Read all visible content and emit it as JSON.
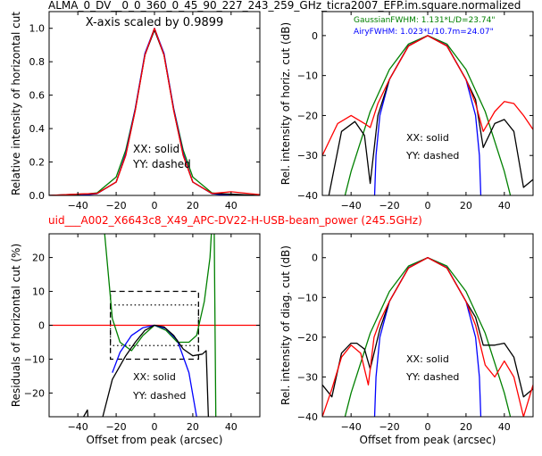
{
  "figure": {
    "title": "ALMA_0_DV__0_0_360_0_45_90_227_243_259_GHz_ticra2007_EFP.im.square.normalized",
    "subtitle": "uid___A002_X6643c8_X49_APC-DV22-H-USB-beam_power (245.5GHz)",
    "title_color": "#000000",
    "subtitle_color": "#ff0000"
  },
  "chart_data": [
    {
      "type": "line",
      "ylabel": "Relative intensity of horizontal cut",
      "xlabel": "",
      "xlim": [
        -55,
        55
      ],
      "ylim": [
        0.0,
        1.1
      ],
      "xticks": [
        -40,
        -20,
        0,
        20,
        40
      ],
      "yticks": [
        0.0,
        0.2,
        0.4,
        0.6,
        0.8,
        1.0
      ],
      "ytick_labels": [
        "0.0",
        "0.2",
        "0.4",
        "0.6",
        "0.8",
        "1.0"
      ],
      "annotations": [
        {
          "text": "X-axis scaled by 0.9899",
          "color": "#000000"
        },
        {
          "text": "XX: solid",
          "color": "#000000"
        },
        {
          "text": "YY: dashed",
          "color": "#000000"
        }
      ],
      "series": [
        {
          "color": "#008000",
          "x": [
            -55,
            -40,
            -30,
            -20,
            -15,
            -10,
            -5,
            0,
            5,
            10,
            15,
            20,
            30,
            40,
            55
          ],
          "y": [
            0,
            0.002,
            0.015,
            0.11,
            0.27,
            0.52,
            0.84,
            1.0,
            0.84,
            0.52,
            0.27,
            0.11,
            0.015,
            0.002,
            0
          ]
        },
        {
          "color": "#0000ff",
          "x": [
            -55,
            -40,
            -30,
            -20,
            -15,
            -10,
            -5,
            0,
            5,
            10,
            15,
            20,
            30,
            40,
            55
          ],
          "y": [
            0,
            0.0,
            0.01,
            0.08,
            0.25,
            0.52,
            0.85,
            1.0,
            0.85,
            0.52,
            0.25,
            0.08,
            0.01,
            0.0,
            0
          ]
        },
        {
          "color": "#000000",
          "x": [
            -55,
            -40,
            -30,
            -20,
            -15,
            -10,
            -5,
            0,
            5,
            10,
            15,
            20,
            30,
            40,
            55
          ],
          "y": [
            0,
            0.008,
            0.012,
            0.08,
            0.24,
            0.51,
            0.84,
            0.99,
            0.84,
            0.51,
            0.24,
            0.08,
            0.012,
            0.008,
            0
          ]
        },
        {
          "color": "#ff0000",
          "x": [
            -55,
            -40,
            -30,
            -20,
            -15,
            -10,
            -5,
            0,
            5,
            10,
            15,
            20,
            30,
            40,
            55
          ],
          "y": [
            0,
            0.008,
            0.012,
            0.08,
            0.24,
            0.51,
            0.84,
            1.0,
            0.84,
            0.51,
            0.24,
            0.08,
            0.012,
            0.022,
            0.005
          ]
        }
      ]
    },
    {
      "type": "line",
      "ylabel": "Rel. intensity of horiz. cut (dB)",
      "xlabel": "",
      "xlim": [
        -55,
        55
      ],
      "ylim": [
        -40,
        6
      ],
      "xticks": [
        -40,
        -20,
        0,
        20,
        40
      ],
      "yticks": [
        -40,
        -30,
        -20,
        -10,
        0
      ],
      "ytick_labels": [
        "−40",
        "−30",
        "−20",
        "−10",
        "0"
      ],
      "annotations": [
        {
          "text": "GaussianFWHM: 1.131*L/D=23.74\"",
          "color": "#008000"
        },
        {
          "text": "AiryFWHM: 1.023*L/10.7m=24.07\"",
          "color": "#0000ff"
        },
        {
          "text": "XX: solid",
          "color": "#000000"
        },
        {
          "text": "YY: dashed",
          "color": "#000000"
        }
      ],
      "series": [
        {
          "color": "#008000",
          "x": [
            -50,
            -40,
            -30,
            -20,
            -10,
            0,
            10,
            20,
            30,
            40,
            50
          ],
          "y": [
            -53,
            -34,
            -19,
            -8.5,
            -2.1,
            0,
            -2.1,
            -8.5,
            -19,
            -34,
            -53
          ]
        },
        {
          "color": "#0000ff",
          "x": [
            -28,
            -27,
            -25,
            -20,
            -10,
            0,
            10,
            20,
            25,
            27,
            28
          ],
          "y": [
            -44,
            -30,
            -20,
            -11,
            -2.5,
            0,
            -2.5,
            -11,
            -20,
            -30,
            -44
          ]
        },
        {
          "color": "#000000",
          "x": [
            -52,
            -45,
            -38,
            -33,
            -30,
            -26,
            -20,
            -10,
            0,
            10,
            20,
            25,
            29,
            35,
            40,
            45,
            50,
            55
          ],
          "y": [
            -41,
            -24,
            -21.5,
            -25,
            -37,
            -20,
            -11,
            -2.6,
            0,
            -2.6,
            -11,
            -16,
            -28,
            -22,
            -21,
            -24,
            -38,
            -36
          ]
        },
        {
          "color": "#ff0000",
          "x": [
            -55,
            -47,
            -40,
            -33,
            -30,
            -26,
            -20,
            -10,
            0,
            10,
            20,
            25,
            29,
            35,
            40,
            45,
            50,
            55
          ],
          "y": [
            -30,
            -22,
            -20,
            -22,
            -23,
            -17,
            -11,
            -2.6,
            0,
            -2.6,
            -11,
            -17,
            -24,
            -19,
            -16.5,
            -17,
            -20,
            -23.5
          ]
        }
      ]
    },
    {
      "type": "line",
      "ylabel": "Residuals of horizontal cut (%)",
      "xlabel": "Offset from peak (arcsec)",
      "xlim": [
        -55,
        55
      ],
      "ylim": [
        -27,
        27
      ],
      "xticks": [
        -40,
        -20,
        0,
        20,
        40
      ],
      "yticks": [
        -20,
        -10,
        0,
        10,
        20
      ],
      "ytick_labels": [
        "−20",
        "−10",
        "0",
        "10",
        "20"
      ],
      "annotations": [
        {
          "text": "XX: solid",
          "color": "#000000"
        },
        {
          "text": "YY: dashed",
          "color": "#000000"
        }
      ],
      "series": [
        {
          "color": "#ff0000",
          "x": [
            -55,
            55
          ],
          "y": [
            0,
            0
          ]
        },
        {
          "color": "#008000",
          "x": [
            -26,
            -22,
            -18,
            -12,
            -6,
            0,
            6,
            12,
            18,
            22,
            26,
            29,
            31,
            32
          ],
          "y": [
            27,
            2,
            -5,
            -7.5,
            -3,
            0,
            -1.5,
            -5,
            -5,
            -3,
            7,
            20,
            40,
            -27
          ]
        },
        {
          "color": "#0000ff",
          "x": [
            -22,
            -18,
            -12,
            -6,
            0,
            6,
            12,
            18,
            22
          ],
          "y": [
            -14,
            -8,
            -3,
            -0.7,
            0,
            -1,
            -4.5,
            -14,
            -27
          ]
        },
        {
          "color": "#000000",
          "x": [
            -55,
            -37,
            -35,
            -33,
            -27,
            -22,
            -15,
            -10,
            -5,
            0,
            5,
            10,
            15,
            20,
            25,
            27,
            28,
            29
          ],
          "y": [
            -40,
            -27,
            -25,
            -40,
            -27,
            -16,
            -9,
            -5,
            -1.5,
            0,
            -0.5,
            -3,
            -7,
            -9,
            -8.5,
            -7.5,
            -25,
            -40
          ]
        }
      ],
      "boxes": [
        {
          "style": "dashed",
          "x": [
            -23,
            23
          ],
          "y": [
            -10,
            10
          ]
        },
        {
          "style": "dotted",
          "x": [
            -23,
            23
          ],
          "y": [
            -6,
            6
          ]
        }
      ]
    },
    {
      "type": "line",
      "ylabel": "Rel. intensity of diag. cut (dB)",
      "xlabel": "Offset from peak (arcsec)",
      "xlim": [
        -55,
        55
      ],
      "ylim": [
        -40,
        6
      ],
      "xticks": [
        -40,
        -20,
        0,
        20,
        40
      ],
      "yticks": [
        -40,
        -30,
        -20,
        -10,
        0
      ],
      "ytick_labels": [
        "−40",
        "−30",
        "−20",
        "−10",
        "0"
      ],
      "annotations": [
        {
          "text": "XX: solid",
          "color": "#000000"
        },
        {
          "text": "YY: dashed",
          "color": "#000000"
        }
      ],
      "series": [
        {
          "color": "#008000",
          "x": [
            -50,
            -40,
            -30,
            -20,
            -10,
            0,
            10,
            20,
            30,
            40,
            50
          ],
          "y": [
            -53,
            -34,
            -19,
            -8.5,
            -2.1,
            0,
            -2.1,
            -8.5,
            -19,
            -34,
            -53
          ]
        },
        {
          "color": "#0000ff",
          "x": [
            -28,
            -27,
            -25,
            -20,
            -10,
            0,
            10,
            20,
            25,
            27,
            28
          ],
          "y": [
            -44,
            -30,
            -20,
            -11,
            -2.5,
            0,
            -2.5,
            -11,
            -20,
            -30,
            -44
          ]
        },
        {
          "color": "#000000",
          "x": [
            -55,
            -50,
            -45,
            -40,
            -37,
            -33,
            -30,
            -25,
            -20,
            -10,
            0,
            10,
            20,
            25,
            29,
            35,
            40,
            45,
            50,
            55
          ],
          "y": [
            -32,
            -35,
            -24,
            -21.5,
            -21.5,
            -23,
            -28,
            -18,
            -11,
            -2.6,
            0,
            -2.6,
            -11,
            -15,
            -22,
            -22,
            -21.5,
            -25,
            -35,
            -33
          ]
        },
        {
          "color": "#ff0000",
          "x": [
            -55,
            -50,
            -45,
            -40,
            -35,
            -31,
            -28,
            -25,
            -20,
            -10,
            0,
            10,
            20,
            25,
            30,
            35,
            40,
            45,
            50,
            55
          ],
          "y": [
            -40,
            -33,
            -25,
            -22,
            -24,
            -32,
            -20,
            -16,
            -11,
            -2.6,
            0,
            -2.6,
            -11,
            -17,
            -27,
            -30,
            -26,
            -30,
            -40,
            -32
          ]
        }
      ]
    }
  ]
}
